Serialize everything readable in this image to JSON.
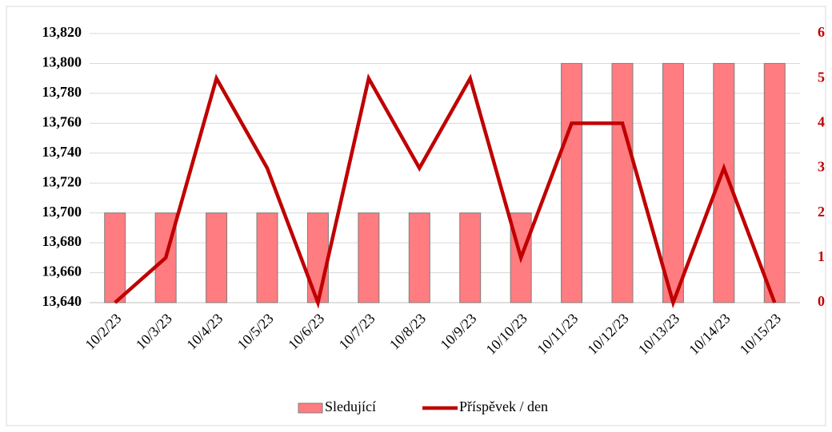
{
  "chart_data": {
    "type": "bar_line",
    "categories": [
      "10/2/23",
      "10/3/23",
      "10/4/23",
      "10/5/23",
      "10/6/23",
      "10/7/23",
      "10/8/23",
      "10/9/23",
      "10/10/23",
      "10/11/23",
      "10/12/23",
      "10/13/23",
      "10/14/23",
      "10/15/23"
    ],
    "series": [
      {
        "name": "Sledující",
        "type": "bar",
        "color": "#ff7c80",
        "values": [
          13700,
          13700,
          13700,
          13700,
          13700,
          13700,
          13700,
          13700,
          13700,
          13800,
          13800,
          13800,
          13800,
          13800
        ]
      },
      {
        "name": "Příspěvek / den",
        "type": "line",
        "axis": "y2",
        "color": "#c00000",
        "values": [
          0,
          1,
          5,
          3,
          0,
          5,
          3,
          5,
          1,
          4,
          4,
          0,
          3,
          0
        ]
      }
    ],
    "ylim": [
      13640,
      13820
    ],
    "yticks": [
      {
        "value": 13640,
        "label": "13,640"
      },
      {
        "value": 13660,
        "label": "13,660"
      },
      {
        "value": 13680,
        "label": "13,680"
      },
      {
        "value": 13700,
        "label": "13,700"
      },
      {
        "value": 13720,
        "label": "13,720"
      },
      {
        "value": 13740,
        "label": "13,740"
      },
      {
        "value": 13760,
        "label": "13,760"
      },
      {
        "value": 13780,
        "label": "13,780"
      },
      {
        "value": 13800,
        "label": "13,800"
      },
      {
        "value": 13820,
        "label": "13,820"
      }
    ],
    "y2lim": [
      0,
      6
    ],
    "y2ticks": [
      0,
      1,
      2,
      3,
      4,
      5,
      6
    ],
    "grid": true,
    "legend": "bottom"
  }
}
